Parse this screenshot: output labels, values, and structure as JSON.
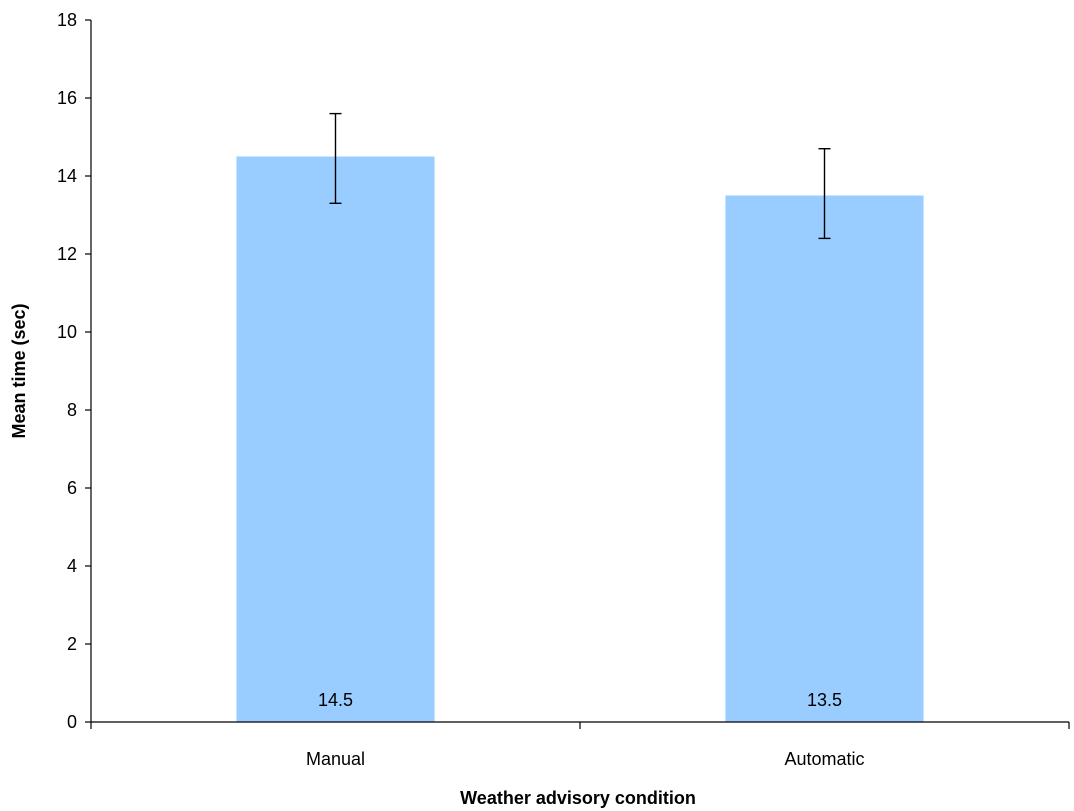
{
  "chart_data": {
    "type": "bar",
    "categories": [
      "Manual",
      "Automatic"
    ],
    "values": [
      14.5,
      13.5
    ],
    "data_labels": [
      "14.5",
      "13.5"
    ],
    "error_upper": [
      15.6,
      14.7
    ],
    "error_lower": [
      13.3,
      12.4
    ],
    "xlabel": "Weather advisory condition",
    "ylabel": "Mean time (sec)",
    "ylim": [
      0,
      18
    ],
    "yticks": [
      0,
      2,
      4,
      6,
      8,
      10,
      12,
      14,
      16,
      18
    ],
    "ytick_labels": [
      "0",
      "2",
      "4",
      "6",
      "8",
      "10",
      "12",
      "14",
      "16",
      "18"
    ],
    "grid": false,
    "legend": "none",
    "bar_color": "#99CCFF"
  }
}
